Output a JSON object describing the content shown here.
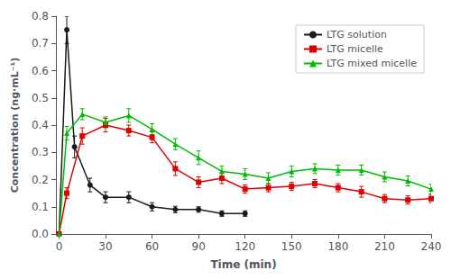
{
  "chart_data": {
    "type": "line",
    "xlabel": "Time (min)",
    "ylabel": "Concentration (ng·mL⁻¹)",
    "xlim": [
      -2,
      240
    ],
    "ylim": [
      0.0,
      0.8
    ],
    "xticks": [
      0,
      30,
      60,
      90,
      120,
      150,
      180,
      210,
      240
    ],
    "yticks": [
      {
        "value": 0.0,
        "label": "0.0"
      },
      0.1,
      0.2,
      0.3,
      0.4,
      0.5,
      0.6,
      0.7,
      0.8
    ],
    "grid": false,
    "legend": "upper right",
    "series": [
      {
        "name": "LTG solution",
        "color": "#1a1a1a",
        "marker": "circle",
        "x": [
          0,
          5,
          10,
          20,
          30,
          45,
          60,
          75,
          90,
          105,
          120
        ],
        "values": [
          0.0,
          0.75,
          0.32,
          0.18,
          0.135,
          0.135,
          0.1,
          0.09,
          0.09,
          0.075,
          0.075
        ],
        "yerr": [
          0.0,
          0.05,
          0.04,
          0.025,
          0.02,
          0.02,
          0.015,
          0.012,
          0.01,
          0.01,
          0.01
        ]
      },
      {
        "name": "LTG micelle",
        "color": "#dd0000",
        "marker": "square",
        "x": [
          0,
          5,
          15,
          30,
          45,
          60,
          75,
          90,
          105,
          120,
          135,
          150,
          165,
          180,
          195,
          210,
          225,
          240
        ],
        "values": [
          0.0,
          0.15,
          0.36,
          0.4,
          0.38,
          0.355,
          0.24,
          0.19,
          0.205,
          0.165,
          0.17,
          0.175,
          0.185,
          0.17,
          0.155,
          0.13,
          0.125,
          0.13
        ],
        "yerr": [
          0.0,
          0.02,
          0.03,
          0.025,
          0.02,
          0.02,
          0.025,
          0.02,
          0.02,
          0.015,
          0.015,
          0.015,
          0.015,
          0.015,
          0.02,
          0.015,
          0.015,
          0.015
        ]
      },
      {
        "name": "LTG mixed micelle",
        "color": "#00bb00",
        "marker": "triangle",
        "x": [
          0,
          5,
          15,
          30,
          45,
          60,
          75,
          90,
          105,
          120,
          135,
          150,
          165,
          180,
          195,
          210,
          225,
          240
        ],
        "values": [
          0.0,
          0.37,
          0.44,
          0.41,
          0.435,
          0.385,
          0.33,
          0.28,
          0.23,
          0.22,
          0.205,
          0.23,
          0.24,
          0.235,
          0.235,
          0.21,
          0.195,
          0.165
        ],
        "yerr": [
          0.0,
          0.025,
          0.02,
          0.02,
          0.025,
          0.02,
          0.02,
          0.025,
          0.02,
          0.02,
          0.02,
          0.02,
          0.018,
          0.018,
          0.018,
          0.018,
          0.018,
          0.018
        ]
      }
    ]
  }
}
